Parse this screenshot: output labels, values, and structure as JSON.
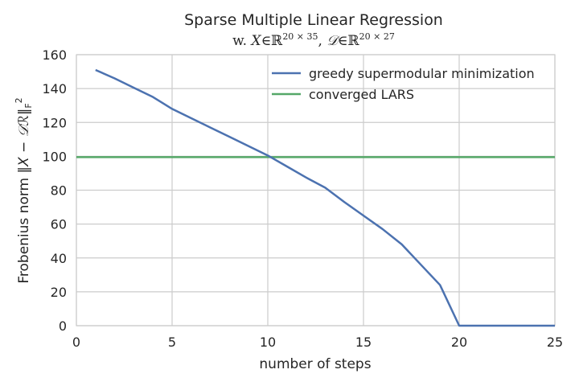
{
  "chart_data": {
    "type": "line",
    "title": "Sparse Multiple Linear Regression",
    "subtitle": {
      "prefix": "w. ",
      "x_var": "X",
      "x_dims": "20 × 35",
      "d_var": "𝒟",
      "d_dims": "20 × 27",
      "set_symbol": "∈",
      "real_symbol": "ℝ",
      "separator": ", "
    },
    "xlabel": "number of steps",
    "ylabel": {
      "prefix": "Frobenius norm ",
      "expression": "‖X − 𝒟ℛ‖",
      "sub": "F",
      "sup": "2"
    },
    "xlim": [
      0,
      25
    ],
    "ylim": [
      0,
      160
    ],
    "xticks": [
      "0",
      "5",
      "10",
      "15",
      "20",
      "25"
    ],
    "yticks": [
      "0",
      "20",
      "40",
      "60",
      "80",
      "100",
      "120",
      "140",
      "160"
    ],
    "grid": true,
    "legend_position": "top-right",
    "series": [
      {
        "name": "greedy supermodular minimization",
        "color": "#4c72b0",
        "x": [
          1,
          2,
          3,
          4,
          5,
          6,
          7,
          8,
          9,
          10,
          11,
          12,
          13,
          14,
          15,
          16,
          17,
          18,
          19,
          20,
          21,
          22,
          23,
          24,
          25
        ],
        "y": [
          151,
          146,
          140.5,
          135,
          128,
          122.5,
          117,
          111.5,
          106,
          100.5,
          94,
          87.5,
          81.5,
          73,
          65,
          57,
          48,
          36,
          24,
          0,
          0,
          0,
          0,
          0,
          0
        ]
      },
      {
        "name": "converged LARS",
        "color": "#55a868",
        "x": [
          0,
          25
        ],
        "y": [
          99.5,
          99.5
        ]
      }
    ]
  }
}
